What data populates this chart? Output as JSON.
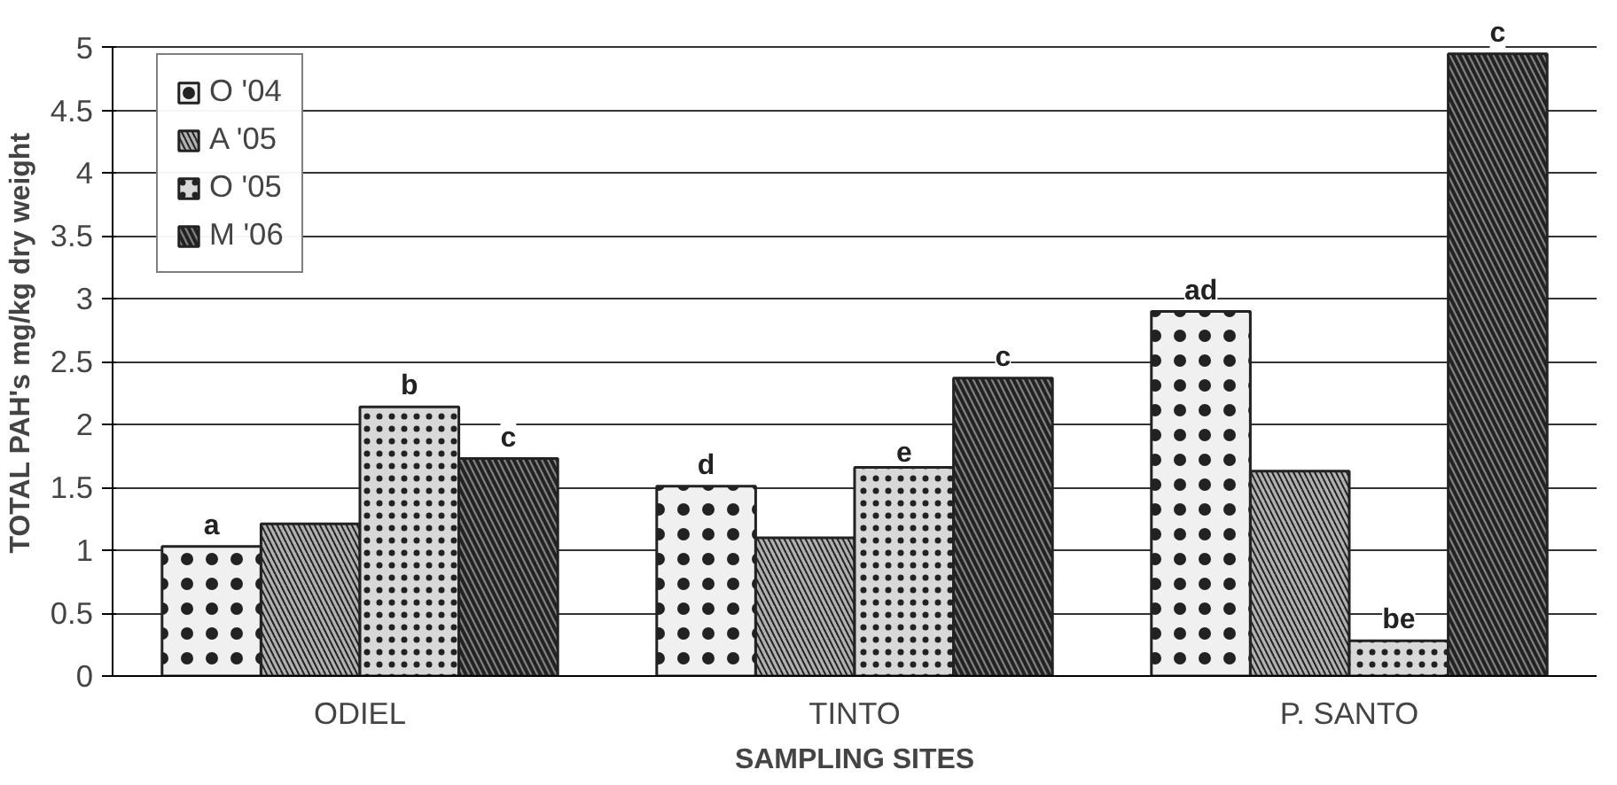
{
  "chart_data": {
    "type": "bar",
    "xlabel": "SAMPLING SITES",
    "ylabel": "TOTAL PAH's mg/kg dry weight",
    "categories": [
      "ODIEL",
      "TINTO",
      "P. SANTO"
    ],
    "series": [
      {
        "name": "O '04",
        "color": "#f0f0f0",
        "values": [
          1.03,
          1.51,
          2.9
        ],
        "value_labels": [
          "a",
          "d",
          "ad"
        ]
      },
      {
        "name": "A '05",
        "color": "#b0b0b0",
        "values": [
          1.21,
          1.1,
          1.63
        ],
        "value_labels": [
          null,
          null,
          null
        ]
      },
      {
        "name": "O '05",
        "color": "#d8d8d8",
        "values": [
          2.14,
          1.66,
          0.28
        ],
        "value_labels": [
          "b",
          "e",
          "be"
        ]
      },
      {
        "name": "M '06",
        "color": "#808080",
        "values": [
          1.73,
          2.37,
          4.95
        ],
        "value_labels": [
          "c",
          "c",
          "c"
        ]
      }
    ],
    "ylim": [
      0,
      5
    ],
    "yticks": [
      0,
      0.5,
      1,
      1.5,
      2,
      2.5,
      3,
      3.5,
      4,
      4.5,
      5
    ],
    "grid": "y",
    "legend": "top left"
  }
}
